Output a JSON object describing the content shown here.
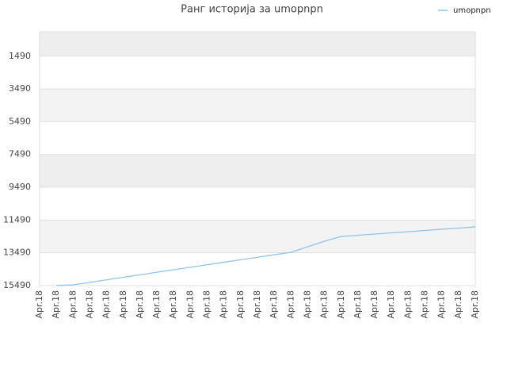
{
  "chart_data": {
    "type": "line",
    "title": "Ранг историја за umopnpn",
    "categories": [
      "Apr.18",
      "Apr.18",
      "Apr.18",
      "Apr.18",
      "Apr.18",
      "Apr.18",
      "Apr.18",
      "Apr.18",
      "Apr.18",
      "Apr.18",
      "Apr.18",
      "Apr.18",
      "Apr.18",
      "Apr.18",
      "Apr.18",
      "Apr.18",
      "Apr.18",
      "Apr.18",
      "Apr.18",
      "Apr.18",
      "Apr.18",
      "Apr.18",
      "Apr.18",
      "Apr.18",
      "Apr.18",
      "Apr.18",
      "Apr.18"
    ],
    "series": [
      {
        "name": "umopnpn",
        "color": "#90c4ee",
        "values": [
          null,
          15480,
          15440,
          15295,
          15135,
          14980,
          14830,
          14675,
          14520,
          14370,
          14215,
          14065,
          13910,
          13760,
          13605,
          13455,
          13120,
          12780,
          12490,
          12415,
          12345,
          12270,
          12200,
          12125,
          12050,
          11980,
          11905
        ]
      }
    ],
    "ylim": [
      15490,
      0
    ],
    "yticks": [
      1490,
      3490,
      5490,
      7490,
      9490,
      11490,
      13490,
      15490
    ],
    "grid": true,
    "legend": "top-right"
  }
}
